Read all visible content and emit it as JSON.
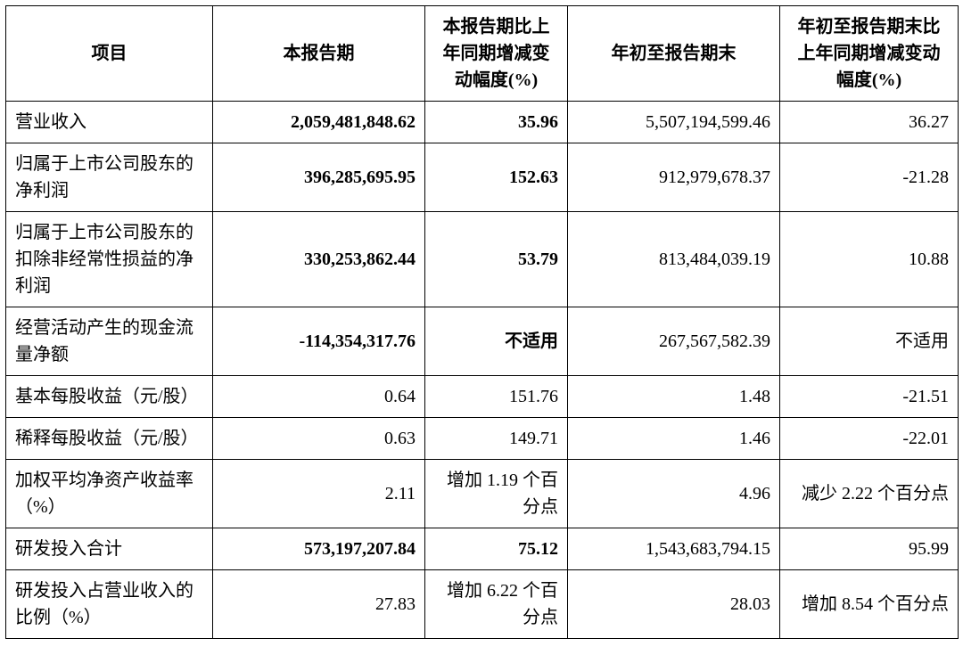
{
  "table": {
    "columns": [
      "项目",
      "本报告期",
      "本报告期比上年同期增减变动幅度(%)",
      "年初至报告期末",
      "年初至报告期末比上年同期增减变动幅度(%)"
    ],
    "rows": [
      {
        "label": "营业收入",
        "c2": "2,059,481,848.62",
        "c3": "35.96",
        "c4": "5,507,194,599.46",
        "c5": "36.27",
        "bold23": true
      },
      {
        "label": "归属于上市公司股东的净利润",
        "c2": "396,285,695.95",
        "c3": "152.63",
        "c4": "912,979,678.37",
        "c5": "-21.28",
        "bold23": true
      },
      {
        "label": "归属于上市公司股东的扣除非经常性损益的净利润",
        "c2": "330,253,862.44",
        "c3": "53.79",
        "c4": "813,484,039.19",
        "c5": "10.88",
        "bold23": true
      },
      {
        "label": "经营活动产生的现金流量净额",
        "c2": "-114,354,317.76",
        "c3": "不适用",
        "c4": "267,567,582.39",
        "c5": "不适用",
        "bold23": true
      },
      {
        "label": "基本每股收益（元/股）",
        "c2": "0.64",
        "c3": "151.76",
        "c4": "1.48",
        "c5": "-21.51",
        "bold23": false
      },
      {
        "label": "稀释每股收益（元/股）",
        "c2": "0.63",
        "c3": "149.71",
        "c4": "1.46",
        "c5": "-22.01",
        "bold23": false
      },
      {
        "label": "加权平均净资产收益率（%）",
        "c2": "2.11",
        "c3": "增加 1.19 个百分点",
        "c4": "4.96",
        "c5": "减少 2.22 个百分点",
        "bold23": false
      },
      {
        "label": "研发投入合计",
        "c2": "573,197,207.84",
        "c3": "75.12",
        "c4": "1,543,683,794.15",
        "c5": "95.99",
        "bold23": true
      },
      {
        "label": "研发投入占营业收入的比例（%）",
        "c2": "27.83",
        "c3": "增加 6.22 个百分点",
        "c4": "28.03",
        "c5": "增加 8.54 个百分点",
        "bold23": false
      }
    ]
  }
}
